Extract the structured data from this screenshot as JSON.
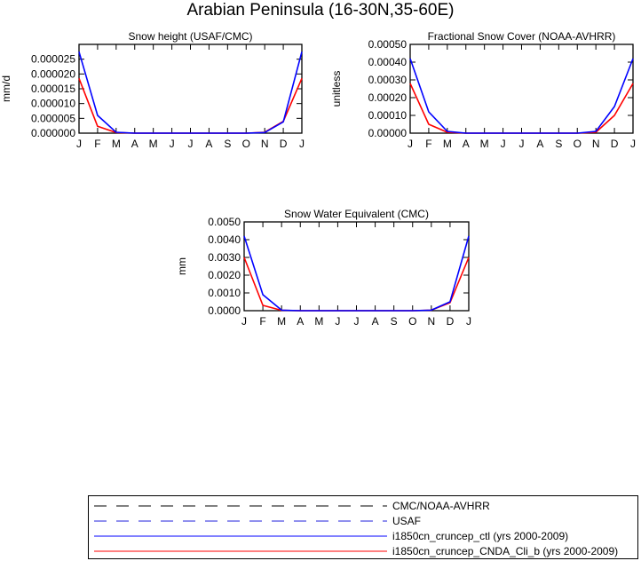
{
  "title": "Arabian Peninsula (16-30N,35-60E)",
  "colors": {
    "cmc_noaa": "#000000",
    "usaf": "#2222dd",
    "ctl": "#0000ff",
    "cnda": "#ff0000"
  },
  "chart_data": [
    {
      "type": "line",
      "title": "Snow height (USAF/CMC)",
      "ylabel": "mm/d",
      "xlabel": "",
      "categories": [
        "J",
        "F",
        "M",
        "A",
        "M",
        "J",
        "J",
        "A",
        "S",
        "O",
        "N",
        "D",
        "J"
      ],
      "ylim": [
        0,
        3e-05
      ],
      "yticks": [
        "0.000000",
        "0.000005",
        "0.000010",
        "0.000015",
        "0.000020",
        "0.000025"
      ],
      "grid": false,
      "series": [
        {
          "name": "i1850cn_cruncep_ctl (yrs 2000-2009)",
          "color": "#0000ff",
          "values": [
            2.75e-05,
            6e-06,
            3e-07,
            0,
            0,
            0,
            0,
            0,
            0,
            0,
            2e-07,
            3.8e-06,
            2.75e-05
          ]
        },
        {
          "name": "i1850cn_cruncep_CNDA_Cli_b (yrs 2000-2009)",
          "color": "#ff0000",
          "values": [
            1.85e-05,
            2.3e-06,
            2e-07,
            0,
            0,
            0,
            0,
            0,
            0,
            0,
            3e-07,
            4e-06,
            1.85e-05
          ]
        }
      ]
    },
    {
      "type": "line",
      "title": "Fractional Snow Cover (NOAA-AVHRR)",
      "ylabel": "unitless",
      "xlabel": "",
      "categories": [
        "J",
        "F",
        "M",
        "A",
        "M",
        "J",
        "J",
        "A",
        "S",
        "O",
        "N",
        "D",
        "J"
      ],
      "ylim": [
        0,
        0.0005
      ],
      "yticks": [
        "0.00000",
        "0.00010",
        "0.00020",
        "0.00030",
        "0.00040",
        "0.00050"
      ],
      "grid": false,
      "series": [
        {
          "name": "i1850cn_cruncep_ctl (yrs 2000-2009)",
          "color": "#0000ff",
          "values": [
            0.00042,
            0.00012,
            1e-05,
            0,
            0,
            0,
            0,
            0,
            0,
            0,
            1e-05,
            0.00015,
            0.00042
          ]
        },
        {
          "name": "i1850cn_cruncep_CNDA_Cli_b (yrs 2000-2009)",
          "color": "#ff0000",
          "values": [
            0.00028,
            5e-05,
            5e-06,
            0,
            0,
            0,
            0,
            0,
            0,
            0,
            5e-06,
            0.0001,
            0.00028
          ]
        }
      ]
    },
    {
      "type": "line",
      "title": "Snow Water Equivalent (CMC)",
      "ylabel": "mm",
      "xlabel": "",
      "categories": [
        "J",
        "F",
        "M",
        "A",
        "M",
        "J",
        "J",
        "A",
        "S",
        "O",
        "N",
        "D",
        "J"
      ],
      "ylim": [
        0,
        0.005
      ],
      "yticks": [
        "0.0000",
        "0.0010",
        "0.0020",
        "0.0030",
        "0.0040",
        "0.0050"
      ],
      "grid": false,
      "series": [
        {
          "name": "i1850cn_cruncep_ctl (yrs 2000-2009)",
          "color": "#0000ff",
          "values": [
            0.0042,
            0.0009,
            3e-05,
            0,
            0,
            0,
            0,
            0,
            0,
            0,
            3e-05,
            0.0005,
            0.0042
          ]
        },
        {
          "name": "i1850cn_cruncep_CNDA_Cli_b (yrs 2000-2009)",
          "color": "#ff0000",
          "values": [
            0.003,
            0.0003,
            2e-05,
            0,
            0,
            0,
            0,
            0,
            0,
            0,
            3e-05,
            0.00045,
            0.003
          ]
        }
      ]
    }
  ],
  "legend": [
    {
      "label": "CMC/NOAA-AVHRR",
      "color": "#000000",
      "style": "dashed"
    },
    {
      "label": "USAF",
      "color": "#2222dd",
      "style": "dashed"
    },
    {
      "label": "i1850cn_cruncep_ctl (yrs 2000-2009)",
      "color": "#0000ff",
      "style": "solid"
    },
    {
      "label": "i1850cn_cruncep_CNDA_Cli_b (yrs 2000-2009)",
      "color": "#ff0000",
      "style": "solid"
    }
  ]
}
